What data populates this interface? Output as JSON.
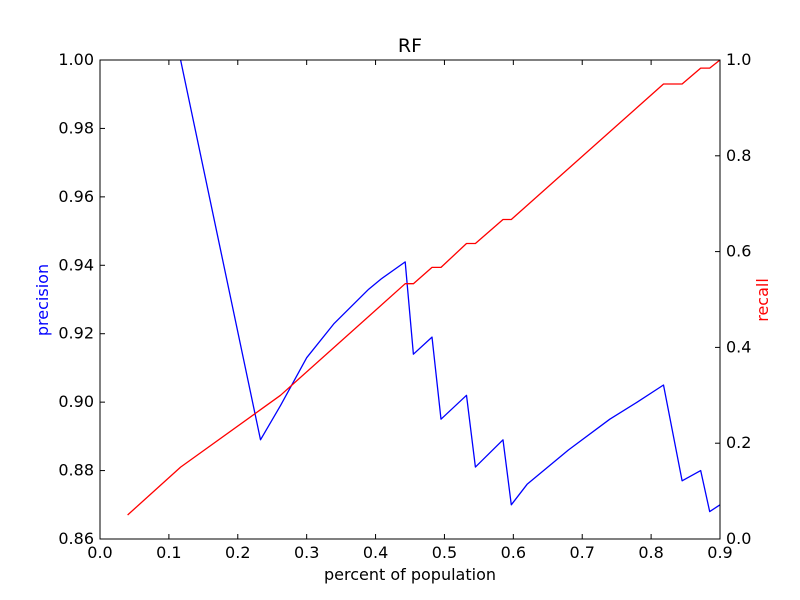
{
  "chart_data": {
    "type": "line",
    "title": "RF",
    "xlabel": "percent of population",
    "ylabel_left": "precision",
    "ylabel_right": "recall",
    "xlim": [
      0.0,
      0.9
    ],
    "ylim_left": [
      0.86,
      1.0
    ],
    "ylim_right": [
      0.0,
      1.0
    ],
    "x_ticks": [
      "0.0",
      "0.1",
      "0.2",
      "0.3",
      "0.4",
      "0.5",
      "0.6",
      "0.7",
      "0.8",
      "0.9"
    ],
    "y_left_ticks": [
      "0.86",
      "0.88",
      "0.90",
      "0.92",
      "0.94",
      "0.96",
      "0.98",
      "1.00"
    ],
    "y_right_ticks": [
      "0.0",
      "0.2",
      "0.4",
      "0.6",
      "0.8",
      "1.0"
    ],
    "grid": false,
    "colors": {
      "precision": "#0000ff",
      "recall": "#ff0000",
      "axes": "#000000"
    },
    "series": [
      {
        "name": "precision",
        "axis": "left",
        "color": "#0000ff",
        "x": [
          0.117,
          0.233,
          0.262,
          0.3,
          0.34,
          0.39,
          0.408,
          0.443,
          0.455,
          0.482,
          0.495,
          0.532,
          0.545,
          0.585,
          0.597,
          0.62,
          0.68,
          0.74,
          0.78,
          0.818,
          0.845,
          0.872,
          0.885,
          0.9
        ],
        "y": [
          1.0,
          0.889,
          0.899,
          0.913,
          0.923,
          0.933,
          0.936,
          0.941,
          0.914,
          0.919,
          0.895,
          0.902,
          0.881,
          0.889,
          0.87,
          0.876,
          0.886,
          0.895,
          0.9,
          0.905,
          0.877,
          0.88,
          0.868,
          0.87
        ]
      },
      {
        "name": "recall",
        "axis": "right",
        "color": "#ff0000",
        "x": [
          0.04,
          0.117,
          0.233,
          0.262,
          0.443,
          0.455,
          0.482,
          0.495,
          0.532,
          0.545,
          0.585,
          0.597,
          0.818,
          0.845,
          0.872,
          0.885,
          0.9
        ],
        "y": [
          0.05,
          0.15,
          0.27,
          0.3,
          0.533,
          0.533,
          0.567,
          0.567,
          0.617,
          0.617,
          0.667,
          0.667,
          0.95,
          0.95,
          0.983,
          0.983,
          1.0
        ]
      }
    ]
  }
}
